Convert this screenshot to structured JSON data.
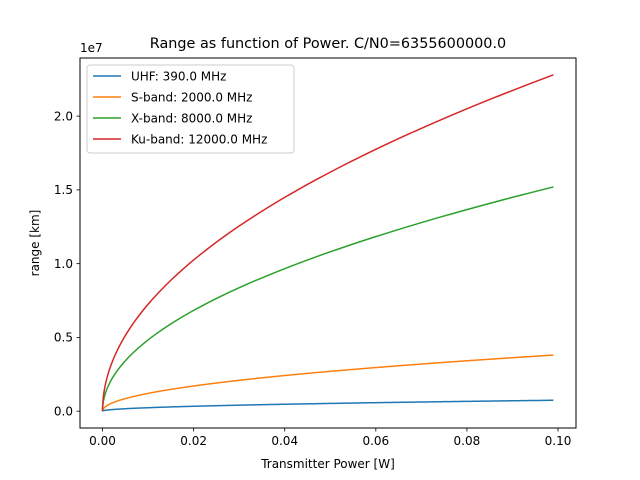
{
  "chart_data": {
    "type": "line",
    "title": "Range as function of Power. C/N0=6355600000.0",
    "xlabel": "Transmitter Power [W]",
    "ylabel": "range [km]",
    "y_offset_label": "1e7",
    "xlim": [
      -0.00495,
      0.10395
    ],
    "ylim": [
      -1140000,
      23940000
    ],
    "x_ticks": [
      0.0,
      0.02,
      0.04,
      0.06,
      0.08,
      0.1
    ],
    "x_tick_labels": [
      "0.00",
      "0.02",
      "0.04",
      "0.06",
      "0.08",
      "0.10"
    ],
    "y_ticks": [
      0,
      5000000,
      10000000,
      15000000,
      20000000
    ],
    "y_tick_labels": [
      "0.0",
      "0.5",
      "1.0",
      "1.5",
      "2.0"
    ],
    "x_range": [
      0.0,
      0.099
    ],
    "model": "range = k * sqrt(power)",
    "grid": false,
    "legend_position": "upper left",
    "series": [
      {
        "name": "UHF: 390.0 MHz",
        "color": "#1f77b4",
        "end_value": 740000
      },
      {
        "name": "S-band: 2000.0 MHz",
        "color": "#ff7f0e",
        "end_value": 3800000
      },
      {
        "name": "X-band: 8000.0 MHz",
        "color": "#2ca02c",
        "end_value": 15200000
      },
      {
        "name": "Ku-band: 12000.0 MHz",
        "color": "#d62728",
        "end_value": 22800000
      }
    ]
  }
}
